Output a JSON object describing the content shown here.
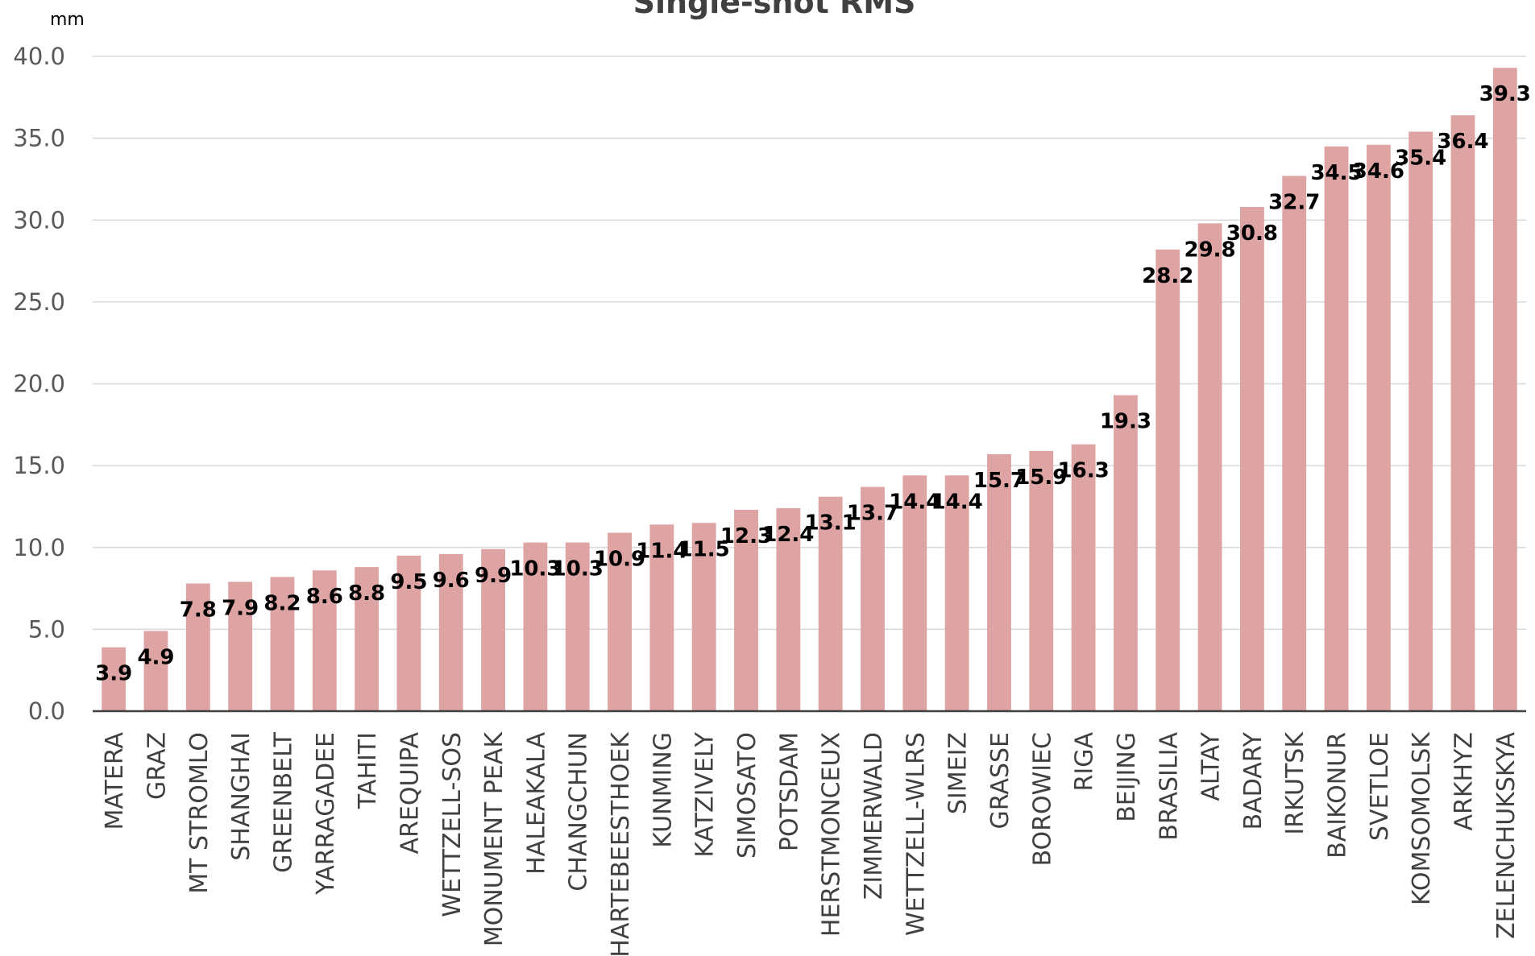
{
  "chart_data": {
    "type": "bar",
    "title": "Single-shot RMS",
    "unit_label": "mm",
    "xlabel": "",
    "ylabel": "",
    "ylim": [
      0,
      40
    ],
    "yticks": [
      "0.0",
      "5.0",
      "10.0",
      "15.0",
      "20.0",
      "25.0",
      "30.0",
      "35.0",
      "40.0"
    ],
    "grid": true,
    "legend": "none",
    "colors": {
      "bar": "#dea3a3",
      "grid": "#d9d9d9",
      "axis": "#404040"
    },
    "categories": [
      "MATERA",
      "GRAZ",
      "MT STROMLO",
      "SHANGHAI",
      "GREENBELT",
      "YARRAGADEE",
      "TAHITI",
      "AREQUIPA",
      "WETTZELL-SOS",
      "MONUMENT PEAK",
      "HALEAKALA",
      "CHANGCHUN",
      "HARTEBEESTHOEK",
      "KUNMING",
      "KATZIVELY",
      "SIMOSATO",
      "POTSDAM",
      "HERSTMONCEUX",
      "ZIMMERWALD",
      "WETTZELL-WLRS",
      "SIMEIZ",
      "GRASSE",
      "BOROWIEC",
      "RIGA",
      "BEIJING",
      "BRASILIA",
      "ALTAY",
      "BADARY",
      "IRKUTSK",
      "BAIKONUR",
      "SVETLOE",
      "KOMSOMOLSK",
      "ARKHYZ",
      "ZELENCHUKSKYA"
    ],
    "values": [
      3.9,
      4.9,
      7.8,
      7.9,
      8.2,
      8.6,
      8.8,
      9.5,
      9.6,
      9.9,
      10.3,
      10.3,
      10.9,
      11.4,
      11.5,
      12.3,
      12.4,
      13.1,
      13.7,
      14.4,
      14.4,
      15.7,
      15.9,
      16.3,
      19.3,
      28.2,
      29.8,
      30.8,
      32.7,
      34.5,
      34.6,
      35.4,
      36.4,
      39.3
    ],
    "data_labels": [
      "3.9",
      "4.9",
      "7.8",
      "7.9",
      "8.2",
      "8.6",
      "8.8",
      "9.5",
      "9.6",
      "9.9",
      "10.3",
      "10.3",
      "10.9",
      "11.4",
      "11.5",
      "12.3",
      "12.4",
      "13.1",
      "13.7",
      "14.4",
      "14.4",
      "15.7",
      "15.9",
      "16.3",
      "19.3",
      "28.2",
      "29.8",
      "30.8",
      "32.7",
      "34.5",
      "34.6",
      "35.4",
      "36.4",
      "39.3"
    ]
  }
}
